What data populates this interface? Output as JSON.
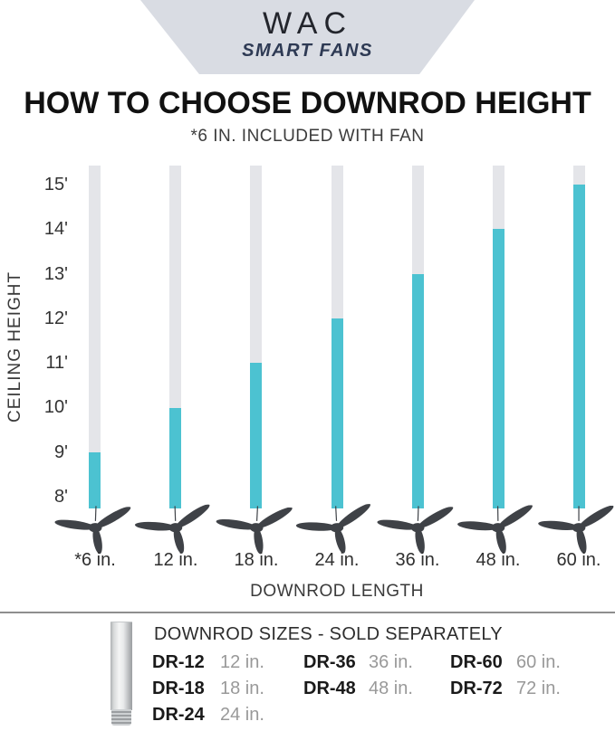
{
  "logo": {
    "brand": "WAC",
    "tagline": "SMART FANS"
  },
  "title": "HOW TO CHOOSE DOWNROD HEIGHT",
  "subtitle": "*6 IN. INCLUDED WITH FAN",
  "chart_data": {
    "type": "bar",
    "title": "HOW TO CHOOSE DOWNROD HEIGHT",
    "xlabel": "DOWNROD LENGTH",
    "ylabel": "CEILING HEIGHT",
    "categories": [
      "*6 in.",
      "12 in.",
      "18 in.",
      "24 in.",
      "36 in.",
      "48 in.",
      "60 in."
    ],
    "values": [
      9,
      10,
      11,
      12,
      13,
      14,
      15
    ],
    "value_meaning": "recommended ceiling height in feet for each downrod length",
    "y_ticks": [
      "15'",
      "14'",
      "13'",
      "12'",
      "11'",
      "10'",
      "9'",
      "8'"
    ],
    "ylim": [
      8,
      15
    ],
    "grid": false,
    "legend": "none",
    "colors": {
      "downrod_fill": "#4cc2d1",
      "track": "#e4e5e9",
      "fan": "#3f4247"
    }
  },
  "footer": {
    "title": "DOWNROD SIZES - SOLD SEPARATELY",
    "columns": [
      [
        {
          "model": "DR-12",
          "size": "12 in."
        },
        {
          "model": "DR-18",
          "size": "18 in."
        },
        {
          "model": "DR-24",
          "size": "24 in."
        }
      ],
      [
        {
          "model": "DR-36",
          "size": "36 in."
        },
        {
          "model": "DR-48",
          "size": "48 in."
        }
      ],
      [
        {
          "model": "DR-60",
          "size": "60 in."
        },
        {
          "model": "DR-72",
          "size": "72 in."
        }
      ]
    ]
  }
}
